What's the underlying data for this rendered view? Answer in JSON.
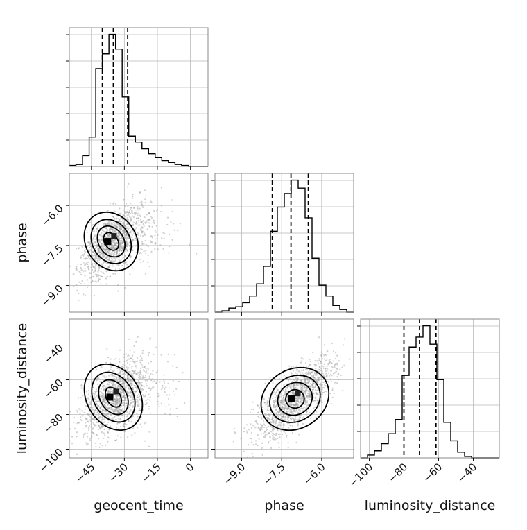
{
  "chart_data": {
    "type": "corner",
    "parameters": [
      "geocent_time",
      "phase",
      "luminosity_distance"
    ],
    "xlabels": [
      "geocent_time",
      "phase",
      "luminosity_distance"
    ],
    "ylabels": [
      "",
      "phase",
      "luminosity_distance"
    ],
    "ranges": {
      "geocent_time": [
        -55,
        8
      ],
      "phase": [
        -10.0,
        -4.8
      ],
      "luminosity_distance": [
        -105,
        -25
      ]
    },
    "ticks": {
      "geocent_time": [
        -45,
        -30,
        -15,
        0
      ],
      "phase": [
        -9.0,
        -7.5,
        -6.0
      ],
      "luminosity_distance": [
        -100,
        -80,
        -60,
        -40
      ]
    },
    "tick_labels": {
      "geocent_time": [
        "−45",
        "−30",
        "−15",
        "0"
      ],
      "phase": [
        "−9.0",
        "−7.5",
        "−6.0"
      ],
      "luminosity_distance": [
        "−100",
        "−80",
        "−60",
        "−40"
      ]
    },
    "histograms": {
      "geocent_time": {
        "edges": [
          -55,
          -52,
          -49,
          -46,
          -43,
          -40,
          -37,
          -34,
          -31,
          -28,
          -25,
          -22,
          -19,
          -16,
          -13,
          -10,
          -7,
          -4,
          -1,
          2,
          5,
          8
        ],
        "counts": [
          1,
          2,
          11,
          30,
          100,
          115,
          135,
          120,
          71,
          31,
          25,
          18,
          13,
          9,
          6,
          4,
          2,
          1,
          0,
          0,
          0
        ],
        "quantiles": [
          -40,
          -35,
          -28.5
        ]
      },
      "phase": {
        "edges": [
          -10.0,
          -9.74,
          -9.48,
          -9.22,
          -8.96,
          -8.7,
          -8.44,
          -8.18,
          -7.92,
          -7.66,
          -7.4,
          -7.14,
          -6.88,
          -6.62,
          -6.36,
          -6.1,
          -5.84,
          -5.58,
          -5.32,
          -5.06,
          -4.8
        ],
        "counts": [
          0,
          1,
          3,
          4,
          7,
          12,
          21,
          34,
          60,
          78,
          88,
          98,
          92,
          70,
          40,
          20,
          12,
          5,
          2,
          0
        ],
        "quantiles": [
          -7.85,
          -7.15,
          -6.5
        ]
      },
      "luminosity_distance": {
        "edges": [
          -105,
          -101,
          -97,
          -93,
          -89,
          -85,
          -81,
          -77,
          -73,
          -69,
          -65,
          -61,
          -57,
          -53,
          -49,
          -45,
          -41,
          -37,
          -33,
          -29,
          -25
        ],
        "counts": [
          0,
          2,
          5,
          10,
          17,
          27,
          58,
          78,
          85,
          93,
          80,
          55,
          25,
          12,
          4,
          1,
          0,
          0,
          0,
          0
        ],
        "quantiles": [
          -80,
          -71,
          -61.5
        ]
      }
    },
    "pairs": [
      {
        "x": "geocent_time",
        "y": "phase",
        "center": [
          -36,
          -7.35
        ],
        "spread": [
          6.5,
          0.65
        ],
        "corr": 0.6
      },
      {
        "x": "geocent_time",
        "y": "luminosity_distance",
        "center": [
          -35,
          -70
        ],
        "spread": [
          7.0,
          11.0
        ],
        "corr": 0.55
      },
      {
        "x": "phase",
        "y": "luminosity_distance",
        "center": [
          -7.0,
          -71
        ],
        "spread": [
          0.75,
          11.5
        ],
        "corr": 0.75
      }
    ],
    "grid": true
  }
}
